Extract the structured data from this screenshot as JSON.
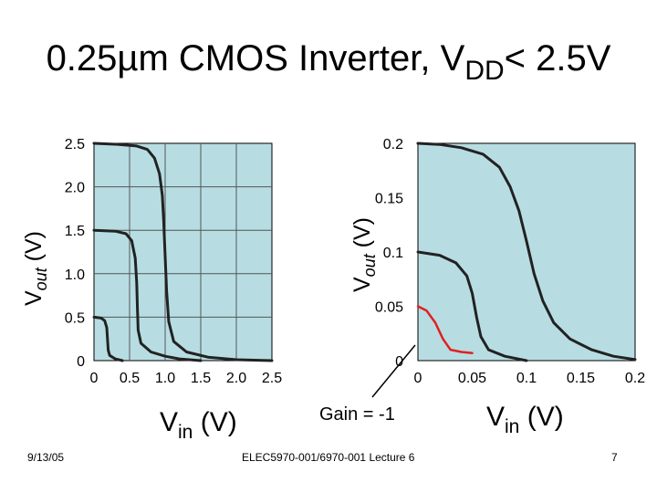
{
  "title": {
    "main": "0.25µm CMOS Inverter, V",
    "sub": "DD",
    "tail": "< 2.5V"
  },
  "colors": {
    "plot_bg": "#b7dde3",
    "curve": "#222222",
    "gain_curve": "#e02020",
    "grid": "#555555"
  },
  "left_plot": {
    "x_ticks": [
      "0",
      "0.5",
      "1.0",
      "1.5",
      "2.0",
      "2.5"
    ],
    "y_ticks": [
      "0",
      "0.5",
      "1.0",
      "1.5",
      "2.0",
      "2.5"
    ],
    "xlabel_main": "V",
    "xlabel_sub": "in",
    "xlabel_unit": " (V)",
    "ylabel_main": "V",
    "ylabel_sub": "out",
    "ylabel_unit": " (V)"
  },
  "right_plot": {
    "x_ticks": [
      "0",
      "0.05",
      "0.1",
      "0.15",
      "0.2"
    ],
    "y_ticks": [
      "0",
      "0.05",
      "0.1",
      "0.15",
      "0.2"
    ],
    "xlabel_main": "V",
    "xlabel_sub": "in",
    "xlabel_unit": " (V)",
    "ylabel_main": "V",
    "ylabel_sub": "out",
    "ylabel_unit": " (V)",
    "annotation": "Gain = -1"
  },
  "footer": {
    "date": "9/13/05",
    "course": "ELEC5970-001/6970-001 Lecture 6",
    "page": "7"
  },
  "chart_data": [
    {
      "type": "line",
      "xlim": [
        0,
        2.5
      ],
      "ylim": [
        0,
        2.5
      ],
      "grid": true,
      "series": [
        {
          "points": [
            [
              0,
              2.5
            ],
            [
              0.3,
              2.49
            ],
            [
              0.6,
              2.47
            ],
            [
              0.75,
              2.43
            ],
            [
              0.85,
              2.33
            ],
            [
              0.92,
              2.15
            ],
            [
              0.96,
              1.9
            ],
            [
              0.98,
              1.6
            ],
            [
              1.0,
              1.2
            ],
            [
              1.02,
              0.8
            ],
            [
              1.05,
              0.45
            ],
            [
              1.12,
              0.22
            ],
            [
              1.3,
              0.1
            ],
            [
              1.6,
              0.04
            ],
            [
              2.0,
              0.01
            ],
            [
              2.5,
              0.0
            ]
          ]
        },
        {
          "points": [
            [
              0,
              1.5
            ],
            [
              0.3,
              1.49
            ],
            [
              0.45,
              1.46
            ],
            [
              0.53,
              1.38
            ],
            [
              0.58,
              1.18
            ],
            [
              0.6,
              0.9
            ],
            [
              0.61,
              0.6
            ],
            [
              0.62,
              0.35
            ],
            [
              0.66,
              0.2
            ],
            [
              0.8,
              0.1
            ],
            [
              1.0,
              0.05
            ],
            [
              1.2,
              0.02
            ],
            [
              1.5,
              0.0
            ]
          ]
        },
        {
          "points": [
            [
              0,
              0.5
            ],
            [
              0.1,
              0.49
            ],
            [
              0.15,
              0.46
            ],
            [
              0.18,
              0.38
            ],
            [
              0.19,
              0.25
            ],
            [
              0.2,
              0.12
            ],
            [
              0.22,
              0.06
            ],
            [
              0.3,
              0.02
            ],
            [
              0.4,
              0.0
            ]
          ]
        }
      ]
    },
    {
      "type": "line",
      "xlim": [
        0,
        0.2
      ],
      "ylim": [
        0,
        0.2
      ],
      "grid": false,
      "series": [
        {
          "points": [
            [
              0,
              0.2
            ],
            [
              0.02,
              0.199
            ],
            [
              0.04,
              0.196
            ],
            [
              0.06,
              0.19
            ],
            [
              0.075,
              0.178
            ],
            [
              0.085,
              0.16
            ],
            [
              0.093,
              0.138
            ],
            [
              0.1,
              0.11
            ],
            [
              0.107,
              0.08
            ],
            [
              0.115,
              0.055
            ],
            [
              0.125,
              0.035
            ],
            [
              0.14,
              0.02
            ],
            [
              0.16,
              0.01
            ],
            [
              0.18,
              0.004
            ],
            [
              0.2,
              0.001
            ]
          ]
        },
        {
          "points": [
            [
              0,
              0.1
            ],
            [
              0.02,
              0.097
            ],
            [
              0.035,
              0.09
            ],
            [
              0.045,
              0.078
            ],
            [
              0.05,
              0.062
            ],
            [
              0.054,
              0.04
            ],
            [
              0.058,
              0.022
            ],
            [
              0.065,
              0.01
            ],
            [
              0.08,
              0.004
            ],
            [
              0.1,
              0.0
            ]
          ]
        },
        {
          "points": [
            [
              0,
              0.05
            ],
            [
              0.008,
              0.046
            ],
            [
              0.016,
              0.035
            ],
            [
              0.023,
              0.02
            ],
            [
              0.03,
              0.01
            ],
            [
              0.04,
              0.008
            ],
            [
              0.05,
              0.007
            ]
          ],
          "highlight": true
        }
      ]
    }
  ]
}
